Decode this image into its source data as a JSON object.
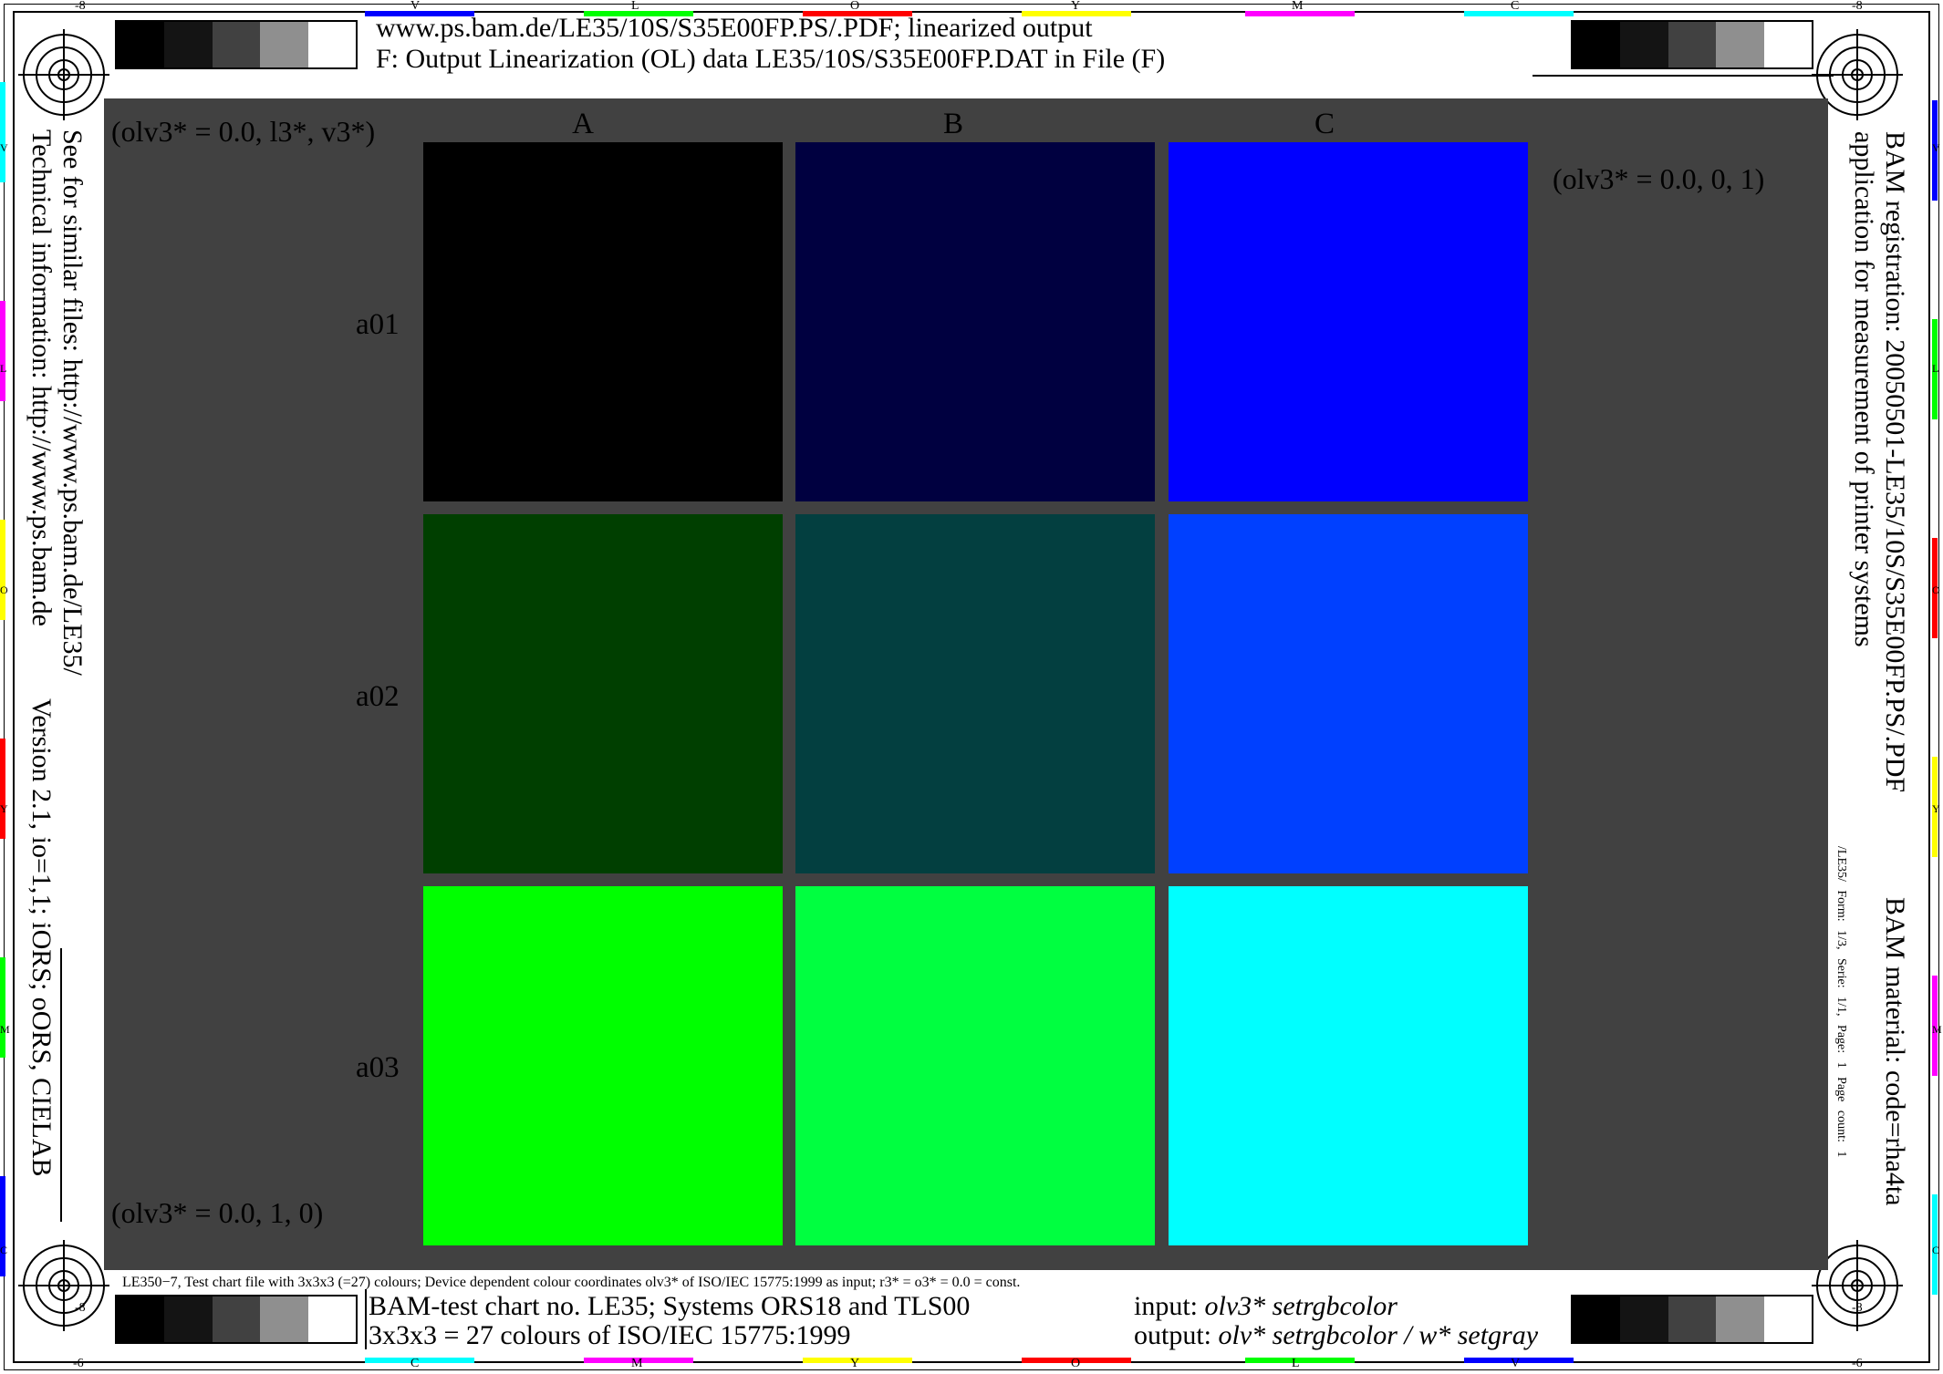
{
  "header": {
    "line1": "www.ps.bam.de/LE35/10S/S35E00FP.PS/.PDF; linearized output",
    "line2": "F: Output Linearization (OL) data LE35/10S/S35E00FP.DAT in File (F)"
  },
  "grid": {
    "columns": [
      "A",
      "B",
      "C"
    ],
    "rows": [
      "a01",
      "a02",
      "a03"
    ],
    "patches": [
      [
        "#000000",
        "#000040",
        "#0000ff"
      ],
      [
        "#003f00",
        "#033f40",
        "#0040ff"
      ],
      [
        "#00ff00",
        "#00ff40",
        "#00ffff"
      ]
    ],
    "corner_top_left": "(olv3* = 0.0, l3*, v3*)",
    "corner_top_right": "(olv3* = 0.0, 0, 1)",
    "corner_bottom_left": "(olv3* = 0.0, 1, 0)"
  },
  "left_side": {
    "line1": "See for similar files: http://www.ps.bam.de/LE35/",
    "line2": "Technical information: http://www.ps.bam.de",
    "line3": "Version 2.1, io=1,1; iORS; oORS, CIELAB"
  },
  "right_side": {
    "line1": "BAM registration: 20050501-LE35/10S/S35E00FP.PS/.PDF",
    "line2": "application for measurement of printer systems",
    "material": "BAM material: code=rha4ta",
    "form": "/LE35/ Form: 1/3, Serie: 1/1, Page: 1 Page count: 1"
  },
  "footer": {
    "caption": "LE350−7, Test chart file with 3x3x3 (=27) colours; Device dependent colour coordinates olv3* of ISO/IEC 15775:1999 as input; r3* = o3* = 0.0 = const.",
    "title1": "BAM-test chart no. LE35; Systems ORS18 and TLS00",
    "title2": "3x3x3 = 27 colours of ISO/IEC 15775:1999",
    "input_label": "input: ",
    "input_value": "olv3* setrgbcolor",
    "output_label": "output: ",
    "output_value": "olv* setrgbcolor / w* setgray"
  },
  "gray_strip": [
    "#000000",
    "#141414",
    "#414141",
    "#8f8f8f",
    "#ffffff"
  ],
  "edge_labels": {
    "top": [
      "-8",
      "V",
      "L",
      "O",
      "Y",
      "M",
      "C",
      "-8"
    ],
    "bottom": [
      "-6",
      "C",
      "M",
      "Y",
      "O",
      "L",
      "V",
      "-6"
    ],
    "bottom_inner": [
      "-8",
      "-8"
    ],
    "side_left": [
      "V",
      "L",
      "O",
      "Y",
      "M",
      "C"
    ],
    "side_right": [
      "V",
      "L",
      "O",
      "Y",
      "M",
      "C"
    ]
  },
  "colors": {
    "panel": "#414141",
    "cyan": "#00ffff",
    "magenta": "#ff00ff",
    "yellow": "#ffff00",
    "red": "#ff0000",
    "green": "#00ff00",
    "blue": "#0000ff"
  }
}
